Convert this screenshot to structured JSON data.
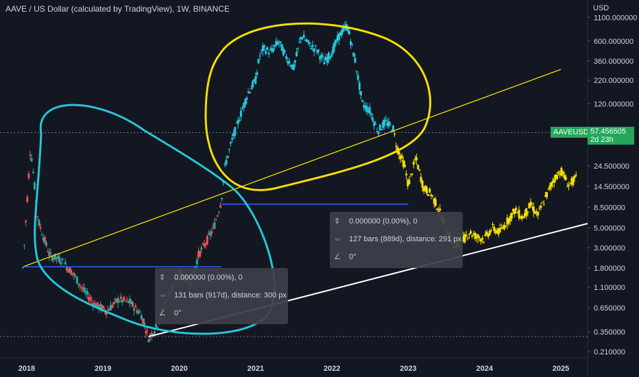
{
  "header": {
    "title": "AAVE / US Dollar (calculated by TradingView), 1W, BINANCE",
    "currency": "USD"
  },
  "price_label": {
    "symbol": "AAVEUSD",
    "price": "57.456505",
    "countdown": "2d 23h"
  },
  "measure_boxes": [
    {
      "price_change": "0.000000 (0.00%), 0",
      "bars": "131 bars (917d), distance: 300 px",
      "angle": "0°"
    },
    {
      "price_change": "0.000000 (0.00%), 0",
      "bars": "127 bars (889d), distance: 291 px",
      "angle": "0°"
    }
  ],
  "colors": {
    "background": "#131722",
    "candle_up": "#26a69a",
    "candle_down": "#ef5350",
    "highlight_cyan": "#26c6da",
    "highlight_yellow": "#f5e000",
    "price_badge": "#26a65b",
    "annotation_blue": "#2962ff"
  },
  "chart_data": {
    "type": "line",
    "title": "AAVE / US Dollar (calculated by TradingView), 1W, BINANCE",
    "yscale": "log",
    "ylim": [
      0.18,
      1250
    ],
    "xlim": [
      2017.65,
      2025.35
    ],
    "y_ticks": [
      "1100.000000",
      "600.000000",
      "360.000000",
      "220.000000",
      "120.000000",
      "24.500000",
      "14.500000",
      "8.500000",
      "5.000000",
      "3.000000",
      "1.800000",
      "1.100000",
      "0.650000",
      "0.350000",
      "0.210000"
    ],
    "x_ticks": [
      "2018",
      "2019",
      "2020",
      "2021",
      "2022",
      "2023",
      "2024",
      "2025"
    ],
    "series": [
      {
        "name": "AAVEUSD",
        "x": [
          2017.95,
          2018.05,
          2018.15,
          2018.3,
          2018.45,
          2018.6,
          2018.75,
          2018.9,
          2019.05,
          2019.2,
          2019.35,
          2019.5,
          2019.6,
          2019.7,
          2019.85,
          2020.0,
          2020.15,
          2020.25,
          2020.35,
          2020.45,
          2020.55,
          2020.6,
          2020.7,
          2020.8,
          2020.9,
          2021.0,
          2021.05,
          2021.1,
          2021.2,
          2021.3,
          2021.4,
          2021.5,
          2021.6,
          2021.7,
          2021.8,
          2021.9,
          2022.0,
          2022.1,
          2022.2,
          2022.3,
          2022.4,
          2022.5,
          2022.6,
          2022.7,
          2022.8,
          2022.85,
          2022.95,
          2023.0,
          2023.1,
          2023.2,
          2023.3,
          2023.4,
          2023.5,
          2023.6,
          2023.7,
          2023.8,
          2023.9,
          2024.0,
          2024.1,
          2024.2,
          2024.3,
          2024.4,
          2024.5,
          2024.6,
          2024.7,
          2024.8,
          2024.9,
          2025.0,
          2025.1,
          2025.2
        ],
        "values": [
          1.8,
          40,
          6,
          2.5,
          2.2,
          1.6,
          1.0,
          0.7,
          0.6,
          0.8,
          0.75,
          0.55,
          0.3,
          0.4,
          0.9,
          1.6,
          1.2,
          2.5,
          3.5,
          5,
          10,
          25,
          50,
          90,
          160,
          220,
          400,
          500,
          450,
          600,
          400,
          300,
          700,
          550,
          480,
          350,
          450,
          700,
          900,
          380,
          120,
          100,
          60,
          75,
          65,
          40,
          25,
          15,
          30,
          14,
          12,
          8,
          5,
          3,
          3.5,
          4.5,
          4,
          3.8,
          5,
          4.5,
          6,
          8,
          6.5,
          9,
          7,
          11,
          17,
          22,
          15,
          18
        ]
      }
    ]
  }
}
